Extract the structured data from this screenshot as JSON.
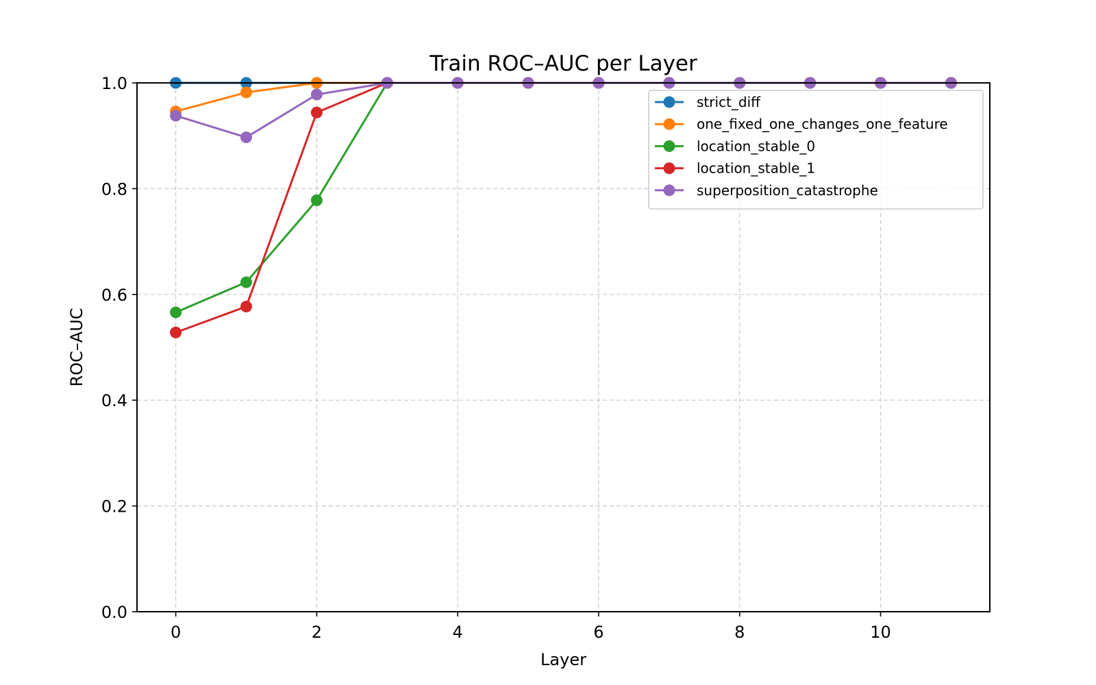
{
  "chart_data": {
    "type": "line",
    "title": "Train ROC–AUC per Layer",
    "xlabel": "Layer",
    "ylabel": "ROC–AUC",
    "xlim": [
      -0.55,
      11.55
    ],
    "ylim": [
      0.0,
      1.0
    ],
    "xticks": [
      0,
      2,
      4,
      6,
      8,
      10
    ],
    "xtick_labels": [
      "0",
      "2",
      "4",
      "6",
      "8",
      "10"
    ],
    "yticks": [
      0.0,
      0.2,
      0.4,
      0.6,
      0.8,
      1.0
    ],
    "ytick_labels": [
      "0.0",
      "0.2",
      "0.4",
      "0.6",
      "0.8",
      "1.0"
    ],
    "grid": true,
    "legend_position": "top-right",
    "x": [
      0,
      1,
      2,
      3,
      4,
      5,
      6,
      7,
      8,
      9,
      10,
      11
    ],
    "series": [
      {
        "name": "strict_diff",
        "color": "#1f77b4",
        "marker": "circle",
        "values": [
          1.0,
          1.0,
          1.0,
          1.0,
          1.0,
          1.0,
          1.0,
          1.0,
          1.0,
          1.0,
          1.0,
          1.0
        ]
      },
      {
        "name": "one_fixed_one_changes_one_feature",
        "color": "#ff7f0e",
        "marker": "circle",
        "values": [
          0.946,
          0.982,
          1.0,
          1.0,
          1.0,
          1.0,
          1.0,
          1.0,
          1.0,
          1.0,
          1.0,
          1.0
        ]
      },
      {
        "name": "location_stable_0",
        "color": "#2ca02c",
        "marker": "circle",
        "values": [
          0.566,
          0.623,
          0.778,
          1.0,
          1.0,
          1.0,
          1.0,
          1.0,
          1.0,
          1.0,
          1.0,
          1.0
        ]
      },
      {
        "name": "location_stable_1",
        "color": "#d62728",
        "marker": "circle",
        "values": [
          0.528,
          0.577,
          0.944,
          1.0,
          1.0,
          1.0,
          1.0,
          1.0,
          1.0,
          1.0,
          1.0,
          1.0
        ]
      },
      {
        "name": "superposition_catastrophe",
        "color": "#9467bd",
        "marker": "circle",
        "values": [
          0.938,
          0.897,
          0.978,
          1.0,
          1.0,
          1.0,
          1.0,
          1.0,
          1.0,
          1.0,
          1.0,
          1.0
        ]
      }
    ]
  }
}
